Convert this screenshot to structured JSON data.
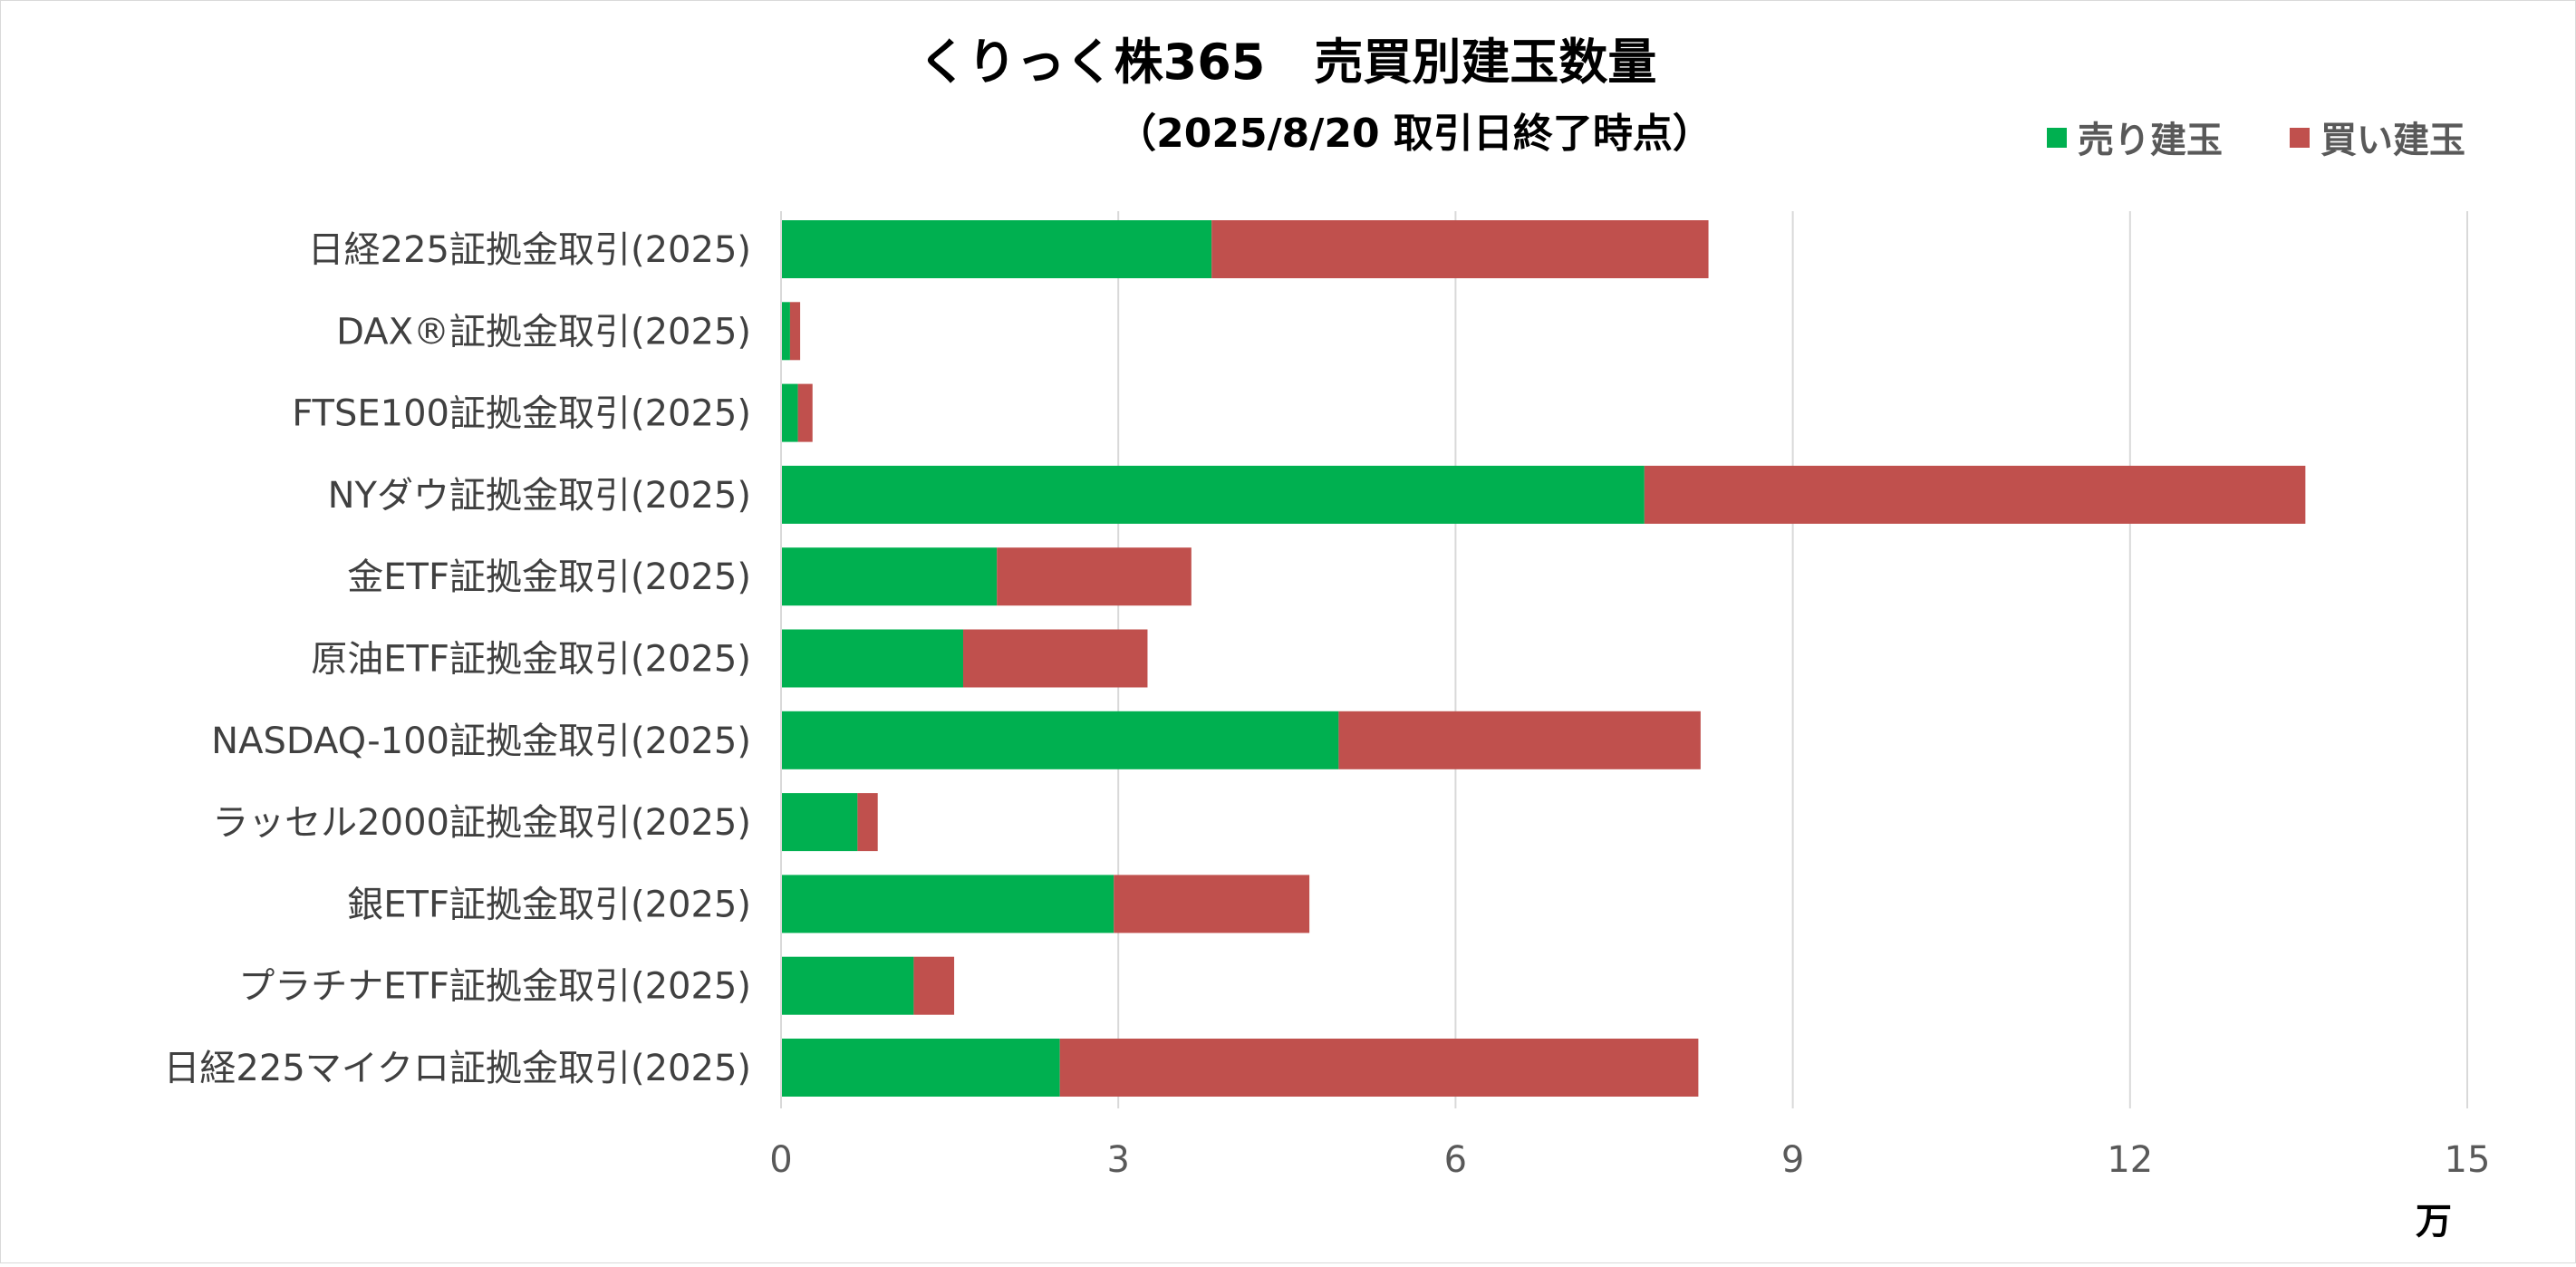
{
  "chart_data": {
    "type": "bar",
    "orientation": "horizontal",
    "stacked": true,
    "title": "くりっく株365　売買別建玉数量",
    "subtitle": "（2025/8/20 取引日終了時点）",
    "categories": [
      "日経225証拠金取引(2025)",
      "DAX®証拠金取引(2025)",
      "FTSE100証拠金取引(2025)",
      "NYダウ証拠金取引(2025)",
      "金ETF証拠金取引(2025)",
      "原油ETF証拠金取引(2025)",
      "NASDAQ-100証拠金取引(2025)",
      "ラッセル2000証拠金取引(2025)",
      "銀ETF証拠金取引(2025)",
      "プラチナETF証拠金取引(2025)",
      "日経225マイクロ証拠金取引(2025)"
    ],
    "series": [
      {
        "name": "売り建玉",
        "color": "#00b050",
        "values": [
          3.83,
          0.08,
          0.15,
          7.68,
          1.92,
          1.62,
          4.96,
          0.68,
          2.96,
          1.18,
          2.48
        ]
      },
      {
        "name": "買い建玉",
        "color": "#c0504d",
        "values": [
          4.42,
          0.09,
          0.13,
          5.88,
          1.73,
          1.64,
          3.22,
          0.18,
          1.74,
          0.36,
          5.68
        ]
      }
    ],
    "xlim": [
      0,
      15
    ],
    "xticks": [
      "0",
      "3",
      "6",
      "9",
      "12",
      "15"
    ],
    "xtick_values": [
      0,
      3,
      6,
      9,
      12,
      15
    ],
    "unit_label": "万",
    "grid": true,
    "legend_position": "top-right"
  }
}
